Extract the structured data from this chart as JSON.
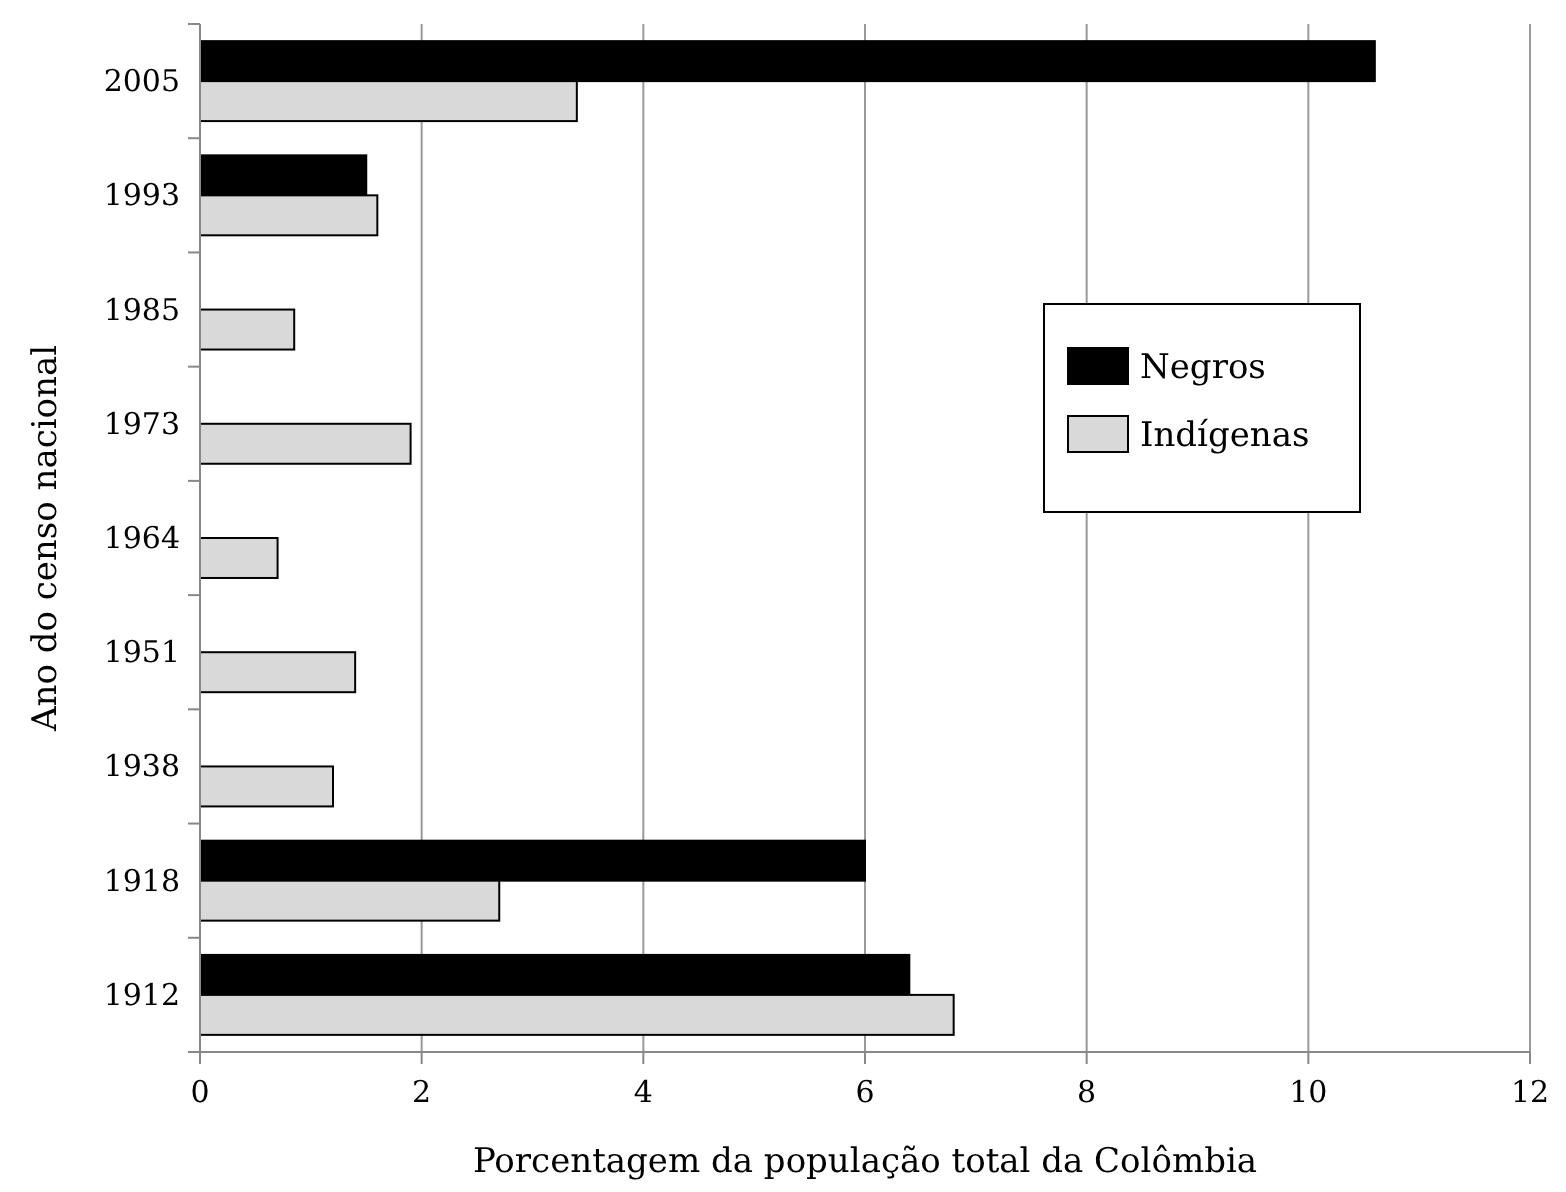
{
  "chart_data": {
    "type": "bar",
    "orientation": "horizontal",
    "xlabel": "Porcentagem da população total da Colômbia",
    "ylabel": "Ano do censo nacional",
    "categories": [
      "2005",
      "1993",
      "1985",
      "1973",
      "1964",
      "1951",
      "1938",
      "1918",
      "1912"
    ],
    "series": [
      {
        "name": "Negros",
        "color": "#000000",
        "values": [
          10.6,
          1.5,
          null,
          null,
          null,
          null,
          null,
          6.0,
          6.4
        ]
      },
      {
        "name": "Indígenas",
        "color": "#d9d9d9",
        "values": [
          3.4,
          1.6,
          0.85,
          1.9,
          0.7,
          1.4,
          1.2,
          2.7,
          6.8
        ]
      }
    ],
    "xlim": [
      0,
      12
    ],
    "xticks": [
      0,
      2,
      4,
      6,
      8,
      10,
      12
    ],
    "grid": "x",
    "legend": "right"
  }
}
